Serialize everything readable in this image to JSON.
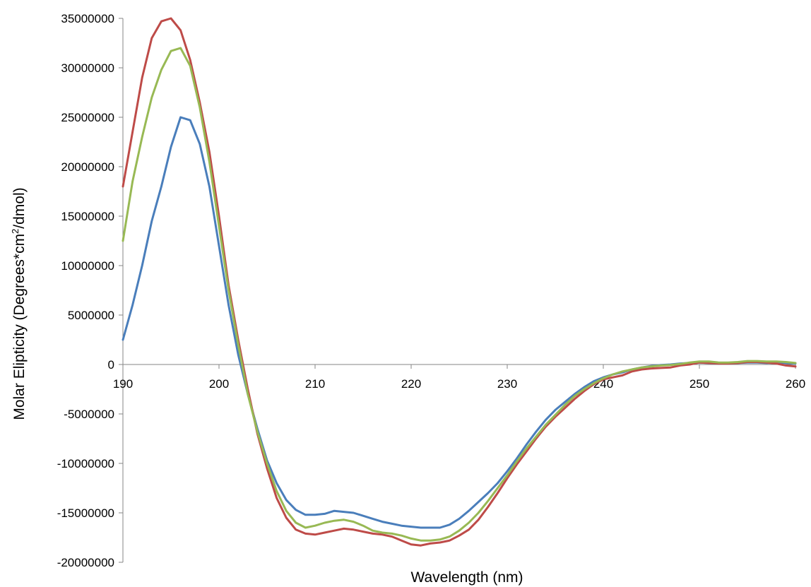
{
  "chart_data": {
    "type": "line",
    "title": "",
    "xlabel": "Wavelength (nm)",
    "ylabel": {
      "main": "Molar Elipticity (Degrees*cm",
      "superscript": "2",
      "suffix": "/dmol)"
    },
    "xlim": [
      190,
      260
    ],
    "ylim": [
      -20000000,
      35000000
    ],
    "x_ticks": [
      "190",
      "200",
      "210",
      "220",
      "230",
      "240",
      "250",
      "260"
    ],
    "y_ticks": [
      "35000000",
      "30000000",
      "25000000",
      "20000000",
      "15000000",
      "10000000",
      "5000000",
      "0",
      "-5000000",
      "-10000000",
      "-15000000",
      "-20000000"
    ],
    "grid": false,
    "legend": "none",
    "x": [
      190,
      191,
      192,
      193,
      194,
      195,
      196,
      197,
      198,
      199,
      200,
      201,
      202,
      203,
      204,
      205,
      206,
      207,
      208,
      209,
      210,
      211,
      212,
      213,
      214,
      215,
      216,
      217,
      218,
      219,
      220,
      221,
      222,
      223,
      224,
      225,
      226,
      227,
      228,
      229,
      230,
      231,
      232,
      233,
      234,
      235,
      236,
      237,
      238,
      239,
      240,
      241,
      242,
      243,
      244,
      245,
      246,
      247,
      248,
      249,
      250,
      251,
      252,
      253,
      254,
      255,
      256,
      257,
      258,
      259,
      260
    ],
    "series": [
      {
        "color": "#4a7ebb",
        "values": [
          2500000,
          6000000,
          10000000,
          14500000,
          18000000,
          22000000,
          25000000,
          24700000,
          22300000,
          18000000,
          12000000,
          6000000,
          1000000,
          -3000000,
          -6500000,
          -9700000,
          -12000000,
          -13700000,
          -14700000,
          -15200000,
          -15200000,
          -15100000,
          -14800000,
          -14900000,
          -15000000,
          -15300000,
          -15600000,
          -15900000,
          -16100000,
          -16300000,
          -16400000,
          -16500000,
          -16500000,
          -16500000,
          -16200000,
          -15600000,
          -14800000,
          -13900000,
          -13000000,
          -12000000,
          -10800000,
          -9500000,
          -8100000,
          -6800000,
          -5600000,
          -4600000,
          -3800000,
          -3000000,
          -2300000,
          -1700000,
          -1300000,
          -1000000,
          -800000,
          -500000,
          -300000,
          -150000,
          -50000,
          0,
          100000,
          150000,
          200000,
          150000,
          100000,
          150000,
          150000,
          200000,
          200000,
          150000,
          200000,
          150000,
          100000
        ]
      },
      {
        "color": "#be4b48",
        "values": [
          18000000,
          23500000,
          29000000,
          33000000,
          34700000,
          35000000,
          33800000,
          30800000,
          26500000,
          21500000,
          15000000,
          8000000,
          2500000,
          -2500000,
          -7000000,
          -10500000,
          -13500000,
          -15500000,
          -16700000,
          -17100000,
          -17200000,
          -17000000,
          -16800000,
          -16600000,
          -16700000,
          -16900000,
          -17100000,
          -17200000,
          -17400000,
          -17800000,
          -18200000,
          -18300000,
          -18100000,
          -18000000,
          -17800000,
          -17300000,
          -16700000,
          -15700000,
          -14400000,
          -13000000,
          -11500000,
          -10100000,
          -8800000,
          -7500000,
          -6300000,
          -5300000,
          -4400000,
          -3500000,
          -2700000,
          -2000000,
          -1500000,
          -1300000,
          -1100000,
          -700000,
          -500000,
          -400000,
          -350000,
          -300000,
          -100000,
          0,
          200000,
          150000,
          100000,
          100000,
          150000,
          250000,
          250000,
          200000,
          100000,
          -100000,
          -200000
        ]
      },
      {
        "color": "#98b954",
        "values": [
          12500000,
          18500000,
          23000000,
          27000000,
          29800000,
          31700000,
          32000000,
          30200000,
          26000000,
          20500000,
          14000000,
          7500000,
          2000000,
          -3000000,
          -6800000,
          -10000000,
          -12800000,
          -14800000,
          -16000000,
          -16500000,
          -16300000,
          -16000000,
          -15800000,
          -15700000,
          -15900000,
          -16300000,
          -16800000,
          -17000000,
          -17100000,
          -17300000,
          -17600000,
          -17800000,
          -17800000,
          -17700000,
          -17400000,
          -16800000,
          -16000000,
          -15000000,
          -13800000,
          -12500000,
          -11200000,
          -9800000,
          -8500000,
          -7300000,
          -6100000,
          -5100000,
          -4100000,
          -3200000,
          -2500000,
          -1900000,
          -1400000,
          -1000000,
          -700000,
          -500000,
          -300000,
          -200000,
          -100000,
          -50000,
          50000,
          200000,
          300000,
          300000,
          200000,
          200000,
          250000,
          350000,
          350000,
          300000,
          300000,
          250000,
          150000
        ]
      }
    ]
  }
}
